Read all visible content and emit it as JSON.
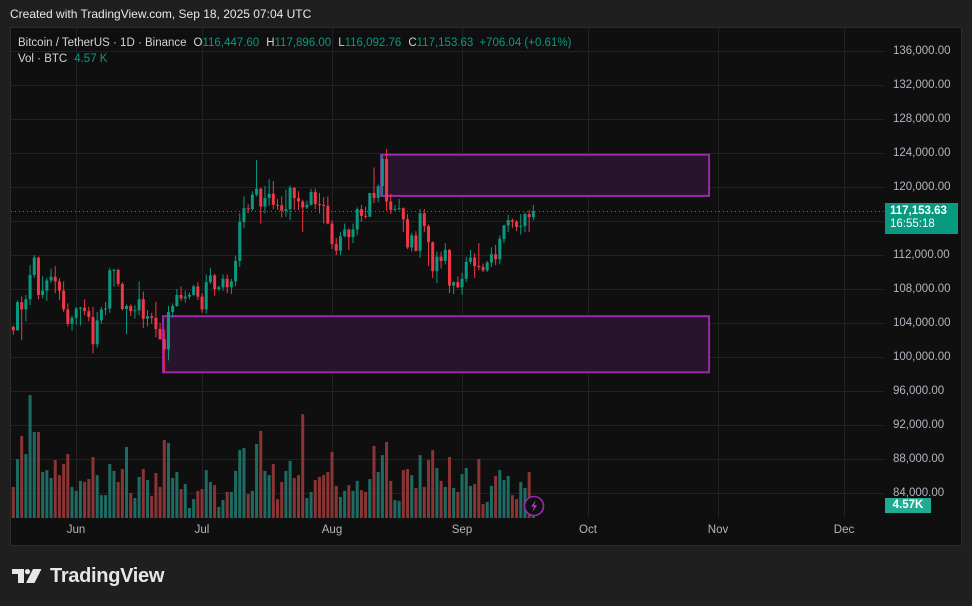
{
  "header": {
    "created_text": "Created with TradingView.com, Sep 18, 2025 07:04 UTC"
  },
  "legend": {
    "symbol": "Bitcoin / TetherUS · 1D · Binance",
    "o_label": "O",
    "o": "116,447.60",
    "h_label": "H",
    "h": "117,896.00",
    "l_label": "L",
    "l": "116,092.76",
    "c_label": "C",
    "c": "117,153.63",
    "change": "+706.04 (+0.61%)",
    "vol_label": "Vol · BTC",
    "vol": "4.57 K"
  },
  "price_axis": {
    "labels": [
      "136,000.00",
      "132,000.00",
      "128,000.00",
      "124,000.00",
      "120,000.00",
      "112,000.00",
      "108,000.00",
      "104,000.00",
      "100,000.00",
      "96,000.00",
      "92,000.00",
      "88,000.00",
      "84,000.00"
    ],
    "last_price": "117,153.63",
    "countdown": "16:55:18",
    "volume_badge": "4.57K"
  },
  "time_axis": {
    "labels": [
      "Jun",
      "Jul",
      "Aug",
      "Sep",
      "Oct",
      "Nov",
      "Dec"
    ]
  },
  "event_marker": {
    "icon": "lightning-icon"
  },
  "branding": {
    "logo_text": "TradingView"
  },
  "colors": {
    "up": "#089981",
    "down": "#f23645",
    "volume_up": "#1e6b64",
    "volume_down": "#8a3434",
    "zone_stroke": "#9c27b0",
    "zone_fill": "#2a1530",
    "grid": "#222222",
    "last_price_line": "#089981",
    "price_badge": "#089981",
    "volume_badge": "#22ab94"
  },
  "chart_data": {
    "type": "candlestick",
    "title": "Bitcoin / TetherUS · 1D · Binance",
    "interval": "1D",
    "x_range": [
      "May 17",
      "Sep 18"
    ],
    "x_ticks": [
      {
        "label": "Jun",
        "index": 15
      },
      {
        "label": "Jul",
        "index": 45
      },
      {
        "label": "Aug",
        "index": 76
      },
      {
        "label": "Sep",
        "index": 107
      },
      {
        "label": "Oct",
        "index": 137
      },
      {
        "label": "Nov",
        "index": 168
      },
      {
        "label": "Dec",
        "index": 198
      }
    ],
    "y_gridlines": [
      136000,
      132000,
      128000,
      124000,
      120000,
      116000,
      112000,
      108000,
      104000,
      100000,
      96000,
      92000,
      88000,
      84000
    ],
    "ylim": [
      82000,
      138500
    ],
    "grid": true,
    "last_price": 117153.63,
    "ohlc": [
      [
        103550,
        103700,
        102600,
        103130
      ],
      [
        103130,
        106660,
        103100,
        106450
      ],
      [
        106450,
        107100,
        102000,
        105600
      ],
      [
        105600,
        107300,
        104200,
        106800
      ],
      [
        106800,
        110800,
        106100,
        109650
      ],
      [
        109650,
        111980,
        109300,
        111700
      ],
      [
        111700,
        111800,
        106800,
        107300
      ],
      [
        107300,
        109500,
        106900,
        107800
      ],
      [
        107800,
        109300,
        106600,
        109000
      ],
      [
        109000,
        110400,
        108700,
        109450
      ],
      [
        109450,
        110700,
        107500,
        108900
      ],
      [
        108900,
        109300,
        106700,
        107800
      ],
      [
        107800,
        108900,
        105300,
        105600
      ],
      [
        105600,
        106300,
        103600,
        103900
      ],
      [
        103900,
        104900,
        103100,
        104600
      ],
      [
        104600,
        105900,
        103800,
        105700
      ],
      [
        105700,
        105900,
        103700,
        105800
      ],
      [
        105800,
        106800,
        104900,
        105400
      ],
      [
        105400,
        105900,
        104200,
        104700
      ],
      [
        104700,
        105900,
        100400,
        101500
      ],
      [
        101500,
        105300,
        101100,
        104300
      ],
      [
        104300,
        105900,
        103900,
        105600
      ],
      [
        105600,
        106500,
        104900,
        105700
      ],
      [
        105700,
        110500,
        105200,
        110200
      ],
      [
        110200,
        110400,
        108300,
        110250
      ],
      [
        110250,
        110400,
        108300,
        108600
      ],
      [
        108600,
        108800,
        105500,
        105650
      ],
      [
        105650,
        106200,
        102700,
        106000
      ],
      [
        106000,
        106200,
        104800,
        105400
      ],
      [
        105400,
        106100,
        104500,
        105500
      ],
      [
        105500,
        108900,
        104900,
        106800
      ],
      [
        106800,
        107700,
        103400,
        104500
      ],
      [
        104500,
        105500,
        103600,
        104800
      ],
      [
        104800,
        105200,
        103900,
        104600
      ],
      [
        104600,
        106500,
        102300,
        103300
      ],
      [
        103300,
        104000,
        102000,
        102100
      ],
      [
        102100,
        103200,
        98200,
        100900
      ],
      [
        100900,
        106000,
        99600,
        105300
      ],
      [
        105300,
        106300,
        104600,
        106000
      ],
      [
        106000,
        108000,
        105900,
        107300
      ],
      [
        107300,
        108300,
        106600,
        106900
      ],
      [
        106900,
        107800,
        106400,
        107100
      ],
      [
        107100,
        107600,
        106800,
        107300
      ],
      [
        107300,
        108500,
        107200,
        108300
      ],
      [
        108300,
        108800,
        106700,
        107100
      ],
      [
        107100,
        107500,
        105200,
        105600
      ],
      [
        105600,
        109700,
        105100,
        108800
      ],
      [
        108800,
        110500,
        108600,
        109600
      ],
      [
        109600,
        109800,
        107200,
        108000
      ],
      [
        108000,
        108400,
        107800,
        108200
      ],
      [
        108200,
        109700,
        107800,
        109200
      ],
      [
        109200,
        109700,
        107500,
        108200
      ],
      [
        108200,
        109200,
        107400,
        108900
      ],
      [
        108900,
        111900,
        108300,
        111300
      ],
      [
        111300,
        116900,
        110600,
        115900
      ],
      [
        115900,
        118900,
        115200,
        117500
      ],
      [
        117500,
        118000,
        116900,
        117400
      ],
      [
        117400,
        119500,
        117200,
        119100
      ],
      [
        119100,
        123200,
        118900,
        119800
      ],
      [
        119800,
        119900,
        115700,
        117700
      ],
      [
        117700,
        120100,
        116900,
        118700
      ],
      [
        118700,
        120900,
        117800,
        119200
      ],
      [
        119200,
        120700,
        117400,
        117900
      ],
      [
        117900,
        118600,
        117300,
        117850
      ],
      [
        117850,
        118900,
        116400,
        117200
      ],
      [
        117200,
        119700,
        116500,
        117400
      ],
      [
        117400,
        120200,
        116100,
        119900
      ],
      [
        119900,
        120000,
        117300,
        118700
      ],
      [
        118700,
        119500,
        117300,
        118300
      ],
      [
        118300,
        118500,
        114700,
        117600
      ],
      [
        117600,
        118400,
        117400,
        117900
      ],
      [
        117900,
        119800,
        117800,
        119400
      ],
      [
        119400,
        119800,
        117400,
        118000
      ],
      [
        118000,
        119300,
        116900,
        117900
      ],
      [
        117900,
        118800,
        115700,
        117800
      ],
      [
        117800,
        118900,
        115600,
        115700
      ],
      [
        115700,
        116100,
        112700,
        113300
      ],
      [
        113300,
        114000,
        112000,
        112500
      ],
      [
        112500,
        114700,
        112000,
        114200
      ],
      [
        114200,
        115700,
        114100,
        115000
      ],
      [
        115000,
        115100,
        112600,
        114100
      ],
      [
        114100,
        115700,
        113400,
        115000
      ],
      [
        115000,
        117600,
        114300,
        117400
      ],
      [
        117400,
        117900,
        115900,
        116600
      ],
      [
        116600,
        117700,
        116300,
        116500
      ],
      [
        116500,
        119300,
        116500,
        119300
      ],
      [
        119300,
        122300,
        118100,
        118700
      ],
      [
        118700,
        120300,
        118200,
        120100
      ],
      [
        120100,
        123700,
        118900,
        123300
      ],
      [
        123300,
        124470,
        117200,
        118300
      ],
      [
        118300,
        119200,
        116800,
        117300
      ],
      [
        117300,
        117900,
        117200,
        117400
      ],
      [
        117400,
        118600,
        117300,
        117500
      ],
      [
        117500,
        117600,
        114700,
        116200
      ],
      [
        116200,
        116800,
        112700,
        112900
      ],
      [
        112900,
        114600,
        112400,
        114300
      ],
      [
        114300,
        114800,
        112400,
        112500
      ],
      [
        112500,
        117400,
        111700,
        116900
      ],
      [
        116900,
        117400,
        114700,
        115400
      ],
      [
        115400,
        115600,
        110700,
        113500
      ],
      [
        113500,
        113600,
        109300,
        110100
      ],
      [
        110100,
        112400,
        108700,
        111800
      ],
      [
        111800,
        112400,
        110400,
        111300
      ],
      [
        111300,
        113400,
        110900,
        112600
      ],
      [
        112600,
        112700,
        107500,
        108400
      ],
      [
        108400,
        108900,
        107400,
        108800
      ],
      [
        108800,
        109500,
        108100,
        108200
      ],
      [
        108200,
        109900,
        107300,
        109200
      ],
      [
        109200,
        111800,
        108800,
        111200
      ],
      [
        111200,
        112600,
        110900,
        111700
      ],
      [
        111700,
        112200,
        109300,
        110700
      ],
      [
        110700,
        113400,
        110200,
        110600
      ],
      [
        110600,
        111000,
        110000,
        110200
      ],
      [
        110200,
        111300,
        110000,
        111100
      ],
      [
        111100,
        112900,
        110600,
        112100
      ],
      [
        112100,
        113200,
        110800,
        111500
      ],
      [
        111500,
        114300,
        110900,
        113900
      ],
      [
        113900,
        115500,
        113400,
        115500
      ],
      [
        115500,
        116700,
        114700,
        116100
      ],
      [
        116100,
        116300,
        115200,
        115900
      ],
      [
        115900,
        116100,
        114800,
        115300
      ],
      [
        115300,
        116800,
        114400,
        115400
      ],
      [
        115400,
        117000,
        114700,
        116800
      ],
      [
        116800,
        117300,
        114700,
        116447.6
      ],
      [
        116447.6,
        117896,
        116092.76,
        117153.63
      ]
    ],
    "volume_unit": "K BTC",
    "volume": [
      11.8,
      22.4,
      31.2,
      24.3,
      46.7,
      32.7,
      32.7,
      17.5,
      18.2,
      15.2,
      22.0,
      16.3,
      20.5,
      24.3,
      11.8,
      10.3,
      14.1,
      13.7,
      14.8,
      23.2,
      16.3,
      8.7,
      8.7,
      20.5,
      17.9,
      13.7,
      18.6,
      27.0,
      9.5,
      7.6,
      15.6,
      18.6,
      14.4,
      8.4,
      17.1,
      11.8,
      29.6,
      28.5,
      15.2,
      17.5,
      11.0,
      12.9,
      3.8,
      7.2,
      10.3,
      11.0,
      18.2,
      13.7,
      12.5,
      4.2,
      6.8,
      9.9,
      9.9,
      17.9,
      25.8,
      26.6,
      9.1,
      10.3,
      28.1,
      33.1,
      17.9,
      16.3,
      20.5,
      7.2,
      13.7,
      17.9,
      21.7,
      15.2,
      16.3,
      39.5,
      7.6,
      9.9,
      14.4,
      15.6,
      16.3,
      17.5,
      25.1,
      12.2,
      8.0,
      10.3,
      12.5,
      10.3,
      14.1,
      10.6,
      9.9,
      14.8,
      27.4,
      17.5,
      23.9,
      28.9,
      14.1,
      6.8,
      6.5,
      18.2,
      18.6,
      16.3,
      11.4,
      23.9,
      11.8,
      22.0,
      25.8,
      19.0,
      14.1,
      11.8,
      23.2,
      11.4,
      9.9,
      16.7,
      19.0,
      12.2,
      12.9,
      22.4,
      5.3,
      6.1,
      12.2,
      16.0,
      18.2,
      14.4,
      16.0,
      8.7,
      7.2,
      13.7,
      11.4,
      17.5,
      4.57
    ],
    "zones": [
      {
        "name": "supply-zone",
        "x_start_index": 87.7,
        "x_end_index": 165.9,
        "top": 123800,
        "bottom": 118950
      },
      {
        "name": "demand-zone",
        "x_start_index": 35.7,
        "x_end_index": 165.9,
        "top": 104800,
        "bottom": 98200
      }
    ]
  }
}
